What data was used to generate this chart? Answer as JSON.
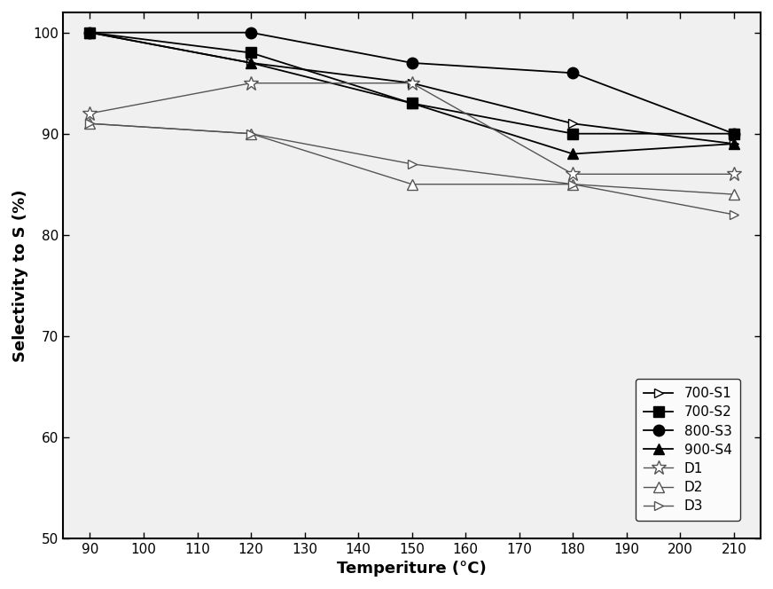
{
  "x": [
    90,
    120,
    150,
    180,
    210
  ],
  "series": {
    "700-S1": [
      100,
      97,
      95,
      91,
      89
    ],
    "700-S2": [
      100,
      98,
      93,
      90,
      90
    ],
    "800-S3": [
      100,
      100,
      97,
      96,
      90
    ],
    "900-S4": [
      100,
      97,
      93,
      88,
      89
    ],
    "D1": [
      92,
      95,
      95,
      86,
      86
    ],
    "D2": [
      91,
      90,
      85,
      85,
      84
    ],
    "D3": [
      91,
      90,
      87,
      85,
      82
    ]
  },
  "markers": {
    "700-S1": ">",
    "700-S2": "s",
    "800-S3": "o",
    "900-S4": "^",
    "D1": "*",
    "D2": "^",
    "D3": ">"
  },
  "filled": {
    "700-S1": false,
    "700-S2": true,
    "800-S3": true,
    "900-S4": true,
    "D1": false,
    "D2": false,
    "D3": false
  },
  "line_colors": {
    "700-S1": "#000000",
    "700-S2": "#000000",
    "800-S3": "#000000",
    "900-S4": "#000000",
    "D1": "#555555",
    "D2": "#555555",
    "D3": "#555555"
  },
  "marker_sizes": {
    "700-S1": 7,
    "700-S2": 8,
    "800-S3": 9,
    "900-S4": 8,
    "D1": 12,
    "D2": 8,
    "D3": 7
  },
  "linewidths": {
    "700-S1": 1.3,
    "700-S2": 1.3,
    "800-S3": 1.3,
    "900-S4": 1.3,
    "D1": 1.0,
    "D2": 1.0,
    "D3": 1.0
  },
  "xlabel": "Temperiture (°C)",
  "ylabel": "Selectivity to S (%)",
  "xlim": [
    85,
    215
  ],
  "ylim": [
    50,
    102
  ],
  "xticks": [
    90,
    100,
    110,
    120,
    130,
    140,
    150,
    160,
    170,
    180,
    190,
    200,
    210
  ],
  "yticks": [
    50,
    60,
    70,
    80,
    90,
    100
  ],
  "series_order": [
    "700-S1",
    "700-S2",
    "800-S3",
    "900-S4",
    "D1",
    "D2",
    "D3"
  ]
}
